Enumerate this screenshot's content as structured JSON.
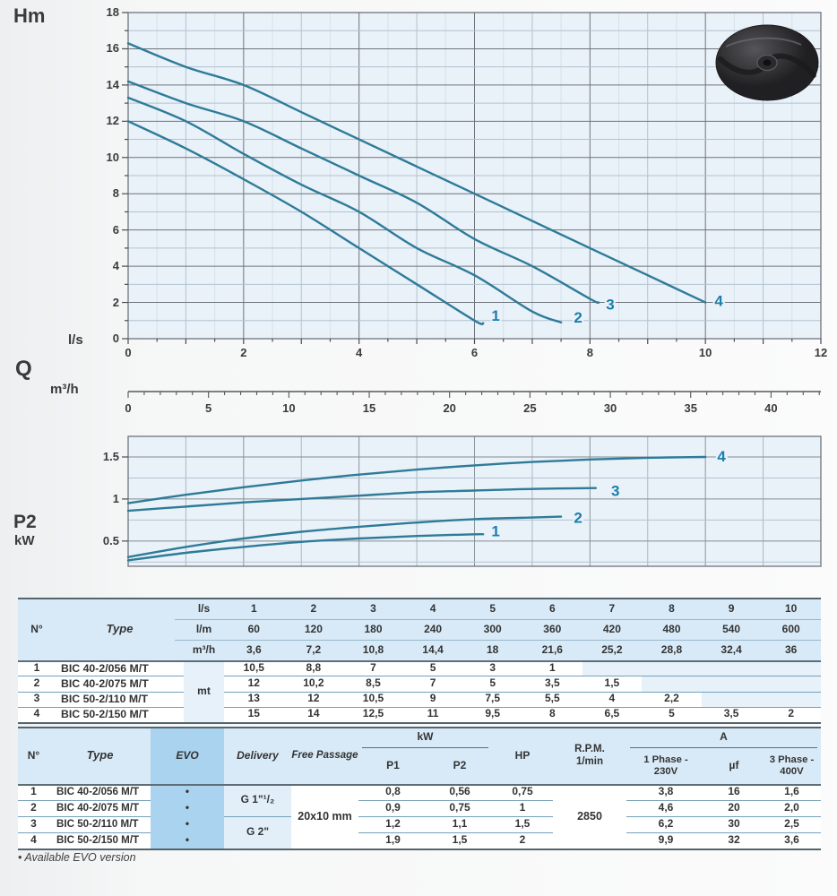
{
  "footnote": "• Available EVO version",
  "colors": {
    "chart_bg": "#e9f1f9",
    "grid_major": "#6e747a",
    "grid_minor": "#b2c3d1",
    "grid_faint": "#d5e1ea",
    "curve": "#2e7b98",
    "curve_label": "#1a7eae",
    "heavy_line": "#53646e",
    "thin_line": "#74a0b9",
    "header_sep": "#97b9cd",
    "table_header_bg": "#d8eaf7",
    "table_tint_bg": "#e6f1fa",
    "delivery_tint_bg": "#e2eff9",
    "evo_col_bg": "#a9d3ef",
    "axis_text": "#3b3b3d"
  },
  "chart_data": [
    {
      "type": "line",
      "name": "head-curves",
      "y_label": "Hm",
      "x_label": "Q",
      "x_unit_primary": "l/s",
      "x_unit_secondary": "m³/h",
      "x_range": [
        0,
        12
      ],
      "y_range": [
        0,
        18
      ],
      "x_ticks": [
        0,
        2,
        4,
        6,
        8,
        10,
        12
      ],
      "y_ticks": [
        0,
        2,
        4,
        6,
        8,
        10,
        12,
        14,
        16,
        18
      ],
      "secondary_ticks": [
        0,
        5,
        10,
        15,
        20,
        25,
        30,
        35,
        40
      ],
      "secondary_max": 43.1,
      "grid": "on",
      "series": [
        {
          "name": "1",
          "points": [
            [
              0,
              12.0
            ],
            [
              1,
              10.5
            ],
            [
              2,
              8.8
            ],
            [
              3,
              7.0
            ],
            [
              4,
              5.0
            ],
            [
              5,
              3.0
            ],
            [
              6,
              1.0
            ],
            [
              6.15,
              0.85
            ]
          ]
        },
        {
          "name": "2",
          "points": [
            [
              0,
              13.3
            ],
            [
              1,
              12.0
            ],
            [
              2,
              10.2
            ],
            [
              3,
              8.5
            ],
            [
              4,
              7.0
            ],
            [
              5,
              5.0
            ],
            [
              6,
              3.5
            ],
            [
              7,
              1.5
            ],
            [
              7.5,
              0.9
            ]
          ]
        },
        {
          "name": "3",
          "points": [
            [
              0,
              14.2
            ],
            [
              1,
              13.0
            ],
            [
              2,
              12.0
            ],
            [
              3,
              10.5
            ],
            [
              4,
              9.0
            ],
            [
              5,
              7.5
            ],
            [
              6,
              5.5
            ],
            [
              7,
              4.0
            ],
            [
              8,
              2.2
            ],
            [
              8.15,
              2.0
            ]
          ]
        },
        {
          "name": "4",
          "points": [
            [
              0,
              16.3
            ],
            [
              1,
              15.0
            ],
            [
              2,
              14.0
            ],
            [
              3,
              12.5
            ],
            [
              4,
              11.0
            ],
            [
              5,
              9.5
            ],
            [
              6,
              8.0
            ],
            [
              7,
              6.5
            ],
            [
              8,
              5.0
            ],
            [
              9,
              3.5
            ],
            [
              10,
              2.0
            ]
          ]
        }
      ]
    },
    {
      "type": "line",
      "name": "power-curves",
      "y_label": "P2",
      "y_unit": "kW",
      "x_range": [
        0,
        12
      ],
      "y_range": [
        0.2,
        1.745
      ],
      "y_ticks": [
        0.5,
        1,
        1.5
      ],
      "grid": "on",
      "series": [
        {
          "name": "1",
          "points": [
            [
              0,
              0.27
            ],
            [
              1,
              0.36
            ],
            [
              2,
              0.43
            ],
            [
              3,
              0.49
            ],
            [
              4,
              0.53
            ],
            [
              5,
              0.56
            ],
            [
              6,
              0.58
            ],
            [
              6.15,
              0.58
            ]
          ]
        },
        {
          "name": "2",
          "points": [
            [
              0,
              0.31
            ],
            [
              1,
              0.43
            ],
            [
              2,
              0.53
            ],
            [
              3,
              0.61
            ],
            [
              4,
              0.67
            ],
            [
              5,
              0.72
            ],
            [
              6,
              0.76
            ],
            [
              7,
              0.78
            ],
            [
              7.5,
              0.79
            ]
          ]
        },
        {
          "name": "3",
          "points": [
            [
              0,
              0.86
            ],
            [
              1,
              0.91
            ],
            [
              2,
              0.96
            ],
            [
              3,
              1.0
            ],
            [
              4,
              1.04
            ],
            [
              5,
              1.08
            ],
            [
              6,
              1.1
            ],
            [
              7,
              1.12
            ],
            [
              8.1,
              1.13
            ]
          ]
        },
        {
          "name": "4",
          "points": [
            [
              0,
              0.95
            ],
            [
              1,
              1.05
            ],
            [
              2,
              1.14
            ],
            [
              3,
              1.22
            ],
            [
              4,
              1.29
            ],
            [
              5,
              1.35
            ],
            [
              6,
              1.4
            ],
            [
              7,
              1.44
            ],
            [
              8,
              1.47
            ],
            [
              9,
              1.49
            ],
            [
              10,
              1.5
            ]
          ]
        }
      ]
    }
  ],
  "table1": {
    "n_header": "N°",
    "type_header": "Type",
    "unit_rows": [
      {
        "label": "l/s",
        "values": [
          "1",
          "2",
          "3",
          "4",
          "5",
          "6",
          "7",
          "8",
          "9",
          "10"
        ]
      },
      {
        "label": "l/m",
        "values": [
          "60",
          "120",
          "180",
          "240",
          "300",
          "360",
          "420",
          "480",
          "540",
          "600"
        ]
      },
      {
        "label": "m³/h",
        "values": [
          "3,6",
          "7,2",
          "10,8",
          "14,4",
          "18",
          "21,6",
          "25,2",
          "28,8",
          "32,4",
          "36"
        ]
      }
    ],
    "body_unit": "mt",
    "rows": [
      {
        "n": "1",
        "type": "BIC 40-2/056  M/T",
        "values": [
          "10,5",
          "8,8",
          "7",
          "5",
          "3",
          "1"
        ]
      },
      {
        "n": "2",
        "type": "BIC 40-2/075  M/T",
        "values": [
          "12",
          "10,2",
          "8,5",
          "7",
          "5",
          "3,5",
          "1,5"
        ]
      },
      {
        "n": "3",
        "type": "BIC 50-2/110  M/T",
        "values": [
          "13",
          "12",
          "10,5",
          "9",
          "7,5",
          "5,5",
          "4",
          "2,2"
        ]
      },
      {
        "n": "4",
        "type": "BIC 50-2/150  M/T",
        "values": [
          "15",
          "14",
          "12,5",
          "11",
          "9,5",
          "8",
          "6,5",
          "5",
          "3,5",
          "2"
        ]
      }
    ]
  },
  "table2": {
    "headers": {
      "n": "N°",
      "type": "Type",
      "evo": "EVO",
      "delivery": "Delivery",
      "free_passage": "Free Passage",
      "kw": "kW",
      "p1": "P1",
      "p2": "P2",
      "hp": "HP",
      "rpm": "R.P.M.\n1/min",
      "a": "A",
      "ph1": "1 Phase -\n230V",
      "uf": "µf",
      "ph3": "3 Phase -\n400V"
    },
    "rpm_value": "2850",
    "free_passage_value": "20x10 mm",
    "delivery_groups": [
      {
        "label": "G 1\"¹/₂",
        "span": [
          0,
          1
        ]
      },
      {
        "label": "G 2\"",
        "span": [
          2,
          3
        ]
      }
    ],
    "rows": [
      {
        "n": "1",
        "type": "BIC 40-2/056  M/T",
        "evo": "•",
        "p1": "0,8",
        "p2": "0,56",
        "hp": "0,75",
        "ph1": "3,8",
        "uf": "16",
        "ph3": "1,6"
      },
      {
        "n": "2",
        "type": "BIC 40-2/075  M/T",
        "evo": "•",
        "p1": "0,9",
        "p2": "0,75",
        "hp": "1",
        "ph1": "4,6",
        "uf": "20",
        "ph3": "2,0"
      },
      {
        "n": "3",
        "type": "BIC 50-2/110  M/T",
        "evo": "•",
        "p1": "1,2",
        "p2": "1,1",
        "hp": "1,5",
        "ph1": "6,2",
        "uf": "30",
        "ph3": "2,5"
      },
      {
        "n": "4",
        "type": "BIC 50-2/150  M/T",
        "evo": "•",
        "p1": "1,9",
        "p2": "1,5",
        "hp": "2",
        "ph1": "9,9",
        "uf": "32",
        "ph3": "3,6"
      }
    ]
  }
}
